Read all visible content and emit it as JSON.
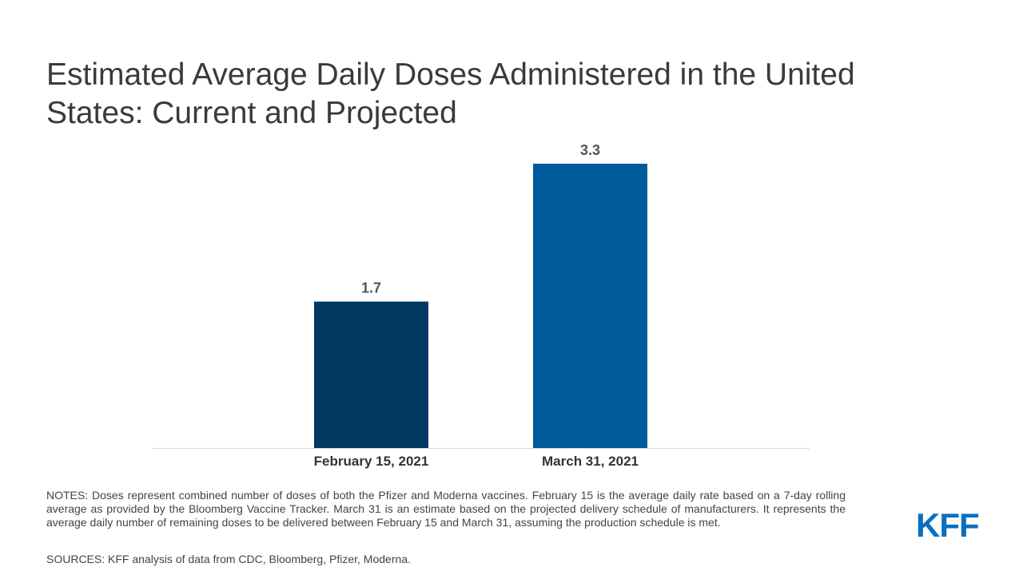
{
  "title": "Estimated Average Daily Doses Administered in the United States: Current and Projected",
  "chart_data": {
    "type": "bar",
    "title": "Estimated Average Daily Doses Administered in the United States: Current and Projected",
    "categories": [
      "February 15, 2021",
      "March 31, 2021"
    ],
    "values": [
      1.7,
      3.3
    ],
    "data_labels": [
      "1.7",
      "3.3"
    ],
    "bar_colors": [
      "#003a63",
      "#005a9c"
    ],
    "ylim": [
      0,
      3.3
    ],
    "xlabel": "",
    "ylabel": "",
    "grid": false,
    "legend": "none"
  },
  "notes": "NOTES: Doses represent combined number of doses of both the Pfizer and Moderna vaccines. February 15 is the average daily rate based on a 7-day rolling average as provided by the Bloomberg Vaccine Tracker. March 31 is an estimate based on the projected delivery schedule of manufacturers. It represents the average daily number of remaining doses to be delivered between February 15 and March 31, assuming the production schedule is met.",
  "sources": "SOURCES: KFF analysis of data from CDC, Bloomberg, Pfizer, Moderna.",
  "logo": {
    "text": "KFF",
    "color": "#0b6fc1"
  },
  "colors": {
    "axis": "#d9d9d9",
    "data_label": "#555555",
    "tick_label": "#333333"
  }
}
